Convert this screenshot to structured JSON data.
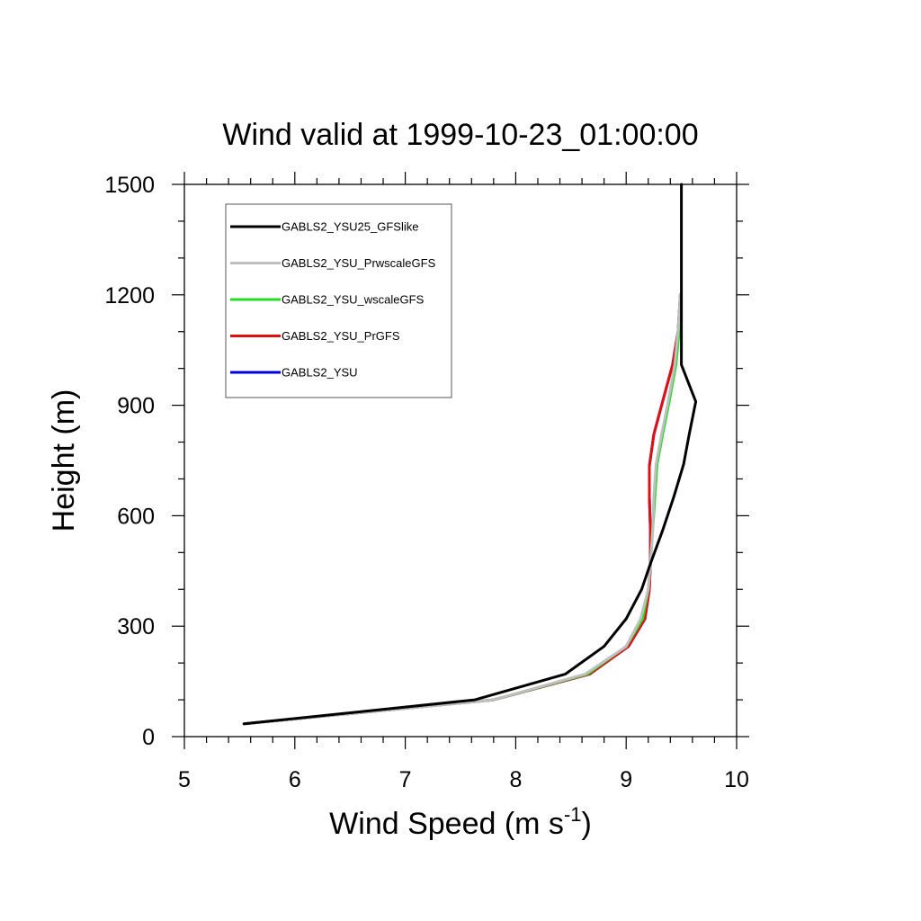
{
  "chart_data": {
    "type": "line",
    "title": "Wind valid at 1999-10-23_01:00:00",
    "xlabel": {
      "main": "Wind Speed (m s",
      "sup": "-1",
      "tail": ")"
    },
    "ylabel": "Height (m)",
    "xlim": [
      5,
      10
    ],
    "ylim": [
      0,
      1500
    ],
    "xticks": [
      "5",
      "6",
      "7",
      "8",
      "9",
      "10"
    ],
    "yticks": [
      "0",
      "300",
      "600",
      "900",
      "1200",
      "1500"
    ],
    "legend_position": "top-left",
    "series": [
      {
        "name": "GABLS2_YSU25_GFSlike",
        "color": "#000000",
        "points": [
          [
            5.54,
            35
          ],
          [
            7.63,
            100
          ],
          [
            8.45,
            170
          ],
          [
            8.8,
            245
          ],
          [
            9.0,
            320
          ],
          [
            9.14,
            400
          ],
          [
            9.22,
            470
          ],
          [
            9.33,
            560
          ],
          [
            9.43,
            650
          ],
          [
            9.52,
            740
          ],
          [
            9.57,
            820
          ],
          [
            9.63,
            910
          ],
          [
            9.5,
            1010
          ],
          [
            9.5,
            1100
          ],
          [
            9.5,
            1200
          ],
          [
            9.5,
            1300
          ],
          [
            9.5,
            1400
          ],
          [
            9.5,
            1500
          ]
        ]
      },
      {
        "name": "GABLS2_YSU_PrwscaleGFS",
        "color": "#bfbfbf",
        "points": [
          [
            5.54,
            35
          ],
          [
            7.8,
            100
          ],
          [
            8.63,
            170
          ],
          [
            9.0,
            245
          ],
          [
            9.13,
            320
          ],
          [
            9.2,
            400
          ],
          [
            9.22,
            470
          ],
          [
            9.24,
            560
          ],
          [
            9.25,
            650
          ],
          [
            9.27,
            740
          ],
          [
            9.32,
            820
          ],
          [
            9.38,
            910
          ],
          [
            9.44,
            1010
          ],
          [
            9.47,
            1100
          ],
          [
            9.49,
            1200
          ]
        ]
      },
      {
        "name": "GABLS2_YSU_wscaleGFS",
        "color": "#22dd22",
        "points": [
          [
            5.54,
            35
          ],
          [
            7.8,
            100
          ],
          [
            8.65,
            170
          ],
          [
            9.0,
            245
          ],
          [
            9.15,
            320
          ],
          [
            9.2,
            400
          ],
          [
            9.22,
            470
          ],
          [
            9.24,
            560
          ],
          [
            9.26,
            650
          ],
          [
            9.28,
            740
          ],
          [
            9.33,
            820
          ],
          [
            9.39,
            910
          ],
          [
            9.45,
            1010
          ],
          [
            9.48,
            1100
          ],
          [
            9.49,
            1200
          ]
        ]
      },
      {
        "name": "GABLS2_YSU_PrGFS",
        "color": "#dd1111",
        "points": [
          [
            5.54,
            35
          ],
          [
            7.8,
            100
          ],
          [
            8.67,
            170
          ],
          [
            9.02,
            245
          ],
          [
            9.17,
            320
          ],
          [
            9.21,
            400
          ],
          [
            9.22,
            470
          ],
          [
            9.22,
            560
          ],
          [
            9.21,
            650
          ],
          [
            9.21,
            735
          ],
          [
            9.25,
            820
          ],
          [
            9.33,
            910
          ],
          [
            9.42,
            1010
          ],
          [
            9.47,
            1100
          ],
          [
            9.49,
            1200
          ]
        ]
      },
      {
        "name": "GABLS2_YSU",
        "color": "#0000dd",
        "points": [
          [
            5.54,
            35
          ],
          [
            7.8,
            100
          ],
          [
            8.67,
            170
          ],
          [
            9.02,
            245
          ],
          [
            9.17,
            320
          ],
          [
            9.21,
            400
          ],
          [
            9.22,
            470
          ],
          [
            9.22,
            560
          ],
          [
            9.21,
            650
          ],
          [
            9.21,
            735
          ],
          [
            9.25,
            820
          ],
          [
            9.33,
            910
          ],
          [
            9.42,
            1010
          ],
          [
            9.47,
            1100
          ],
          [
            9.49,
            1200
          ]
        ]
      }
    ]
  }
}
